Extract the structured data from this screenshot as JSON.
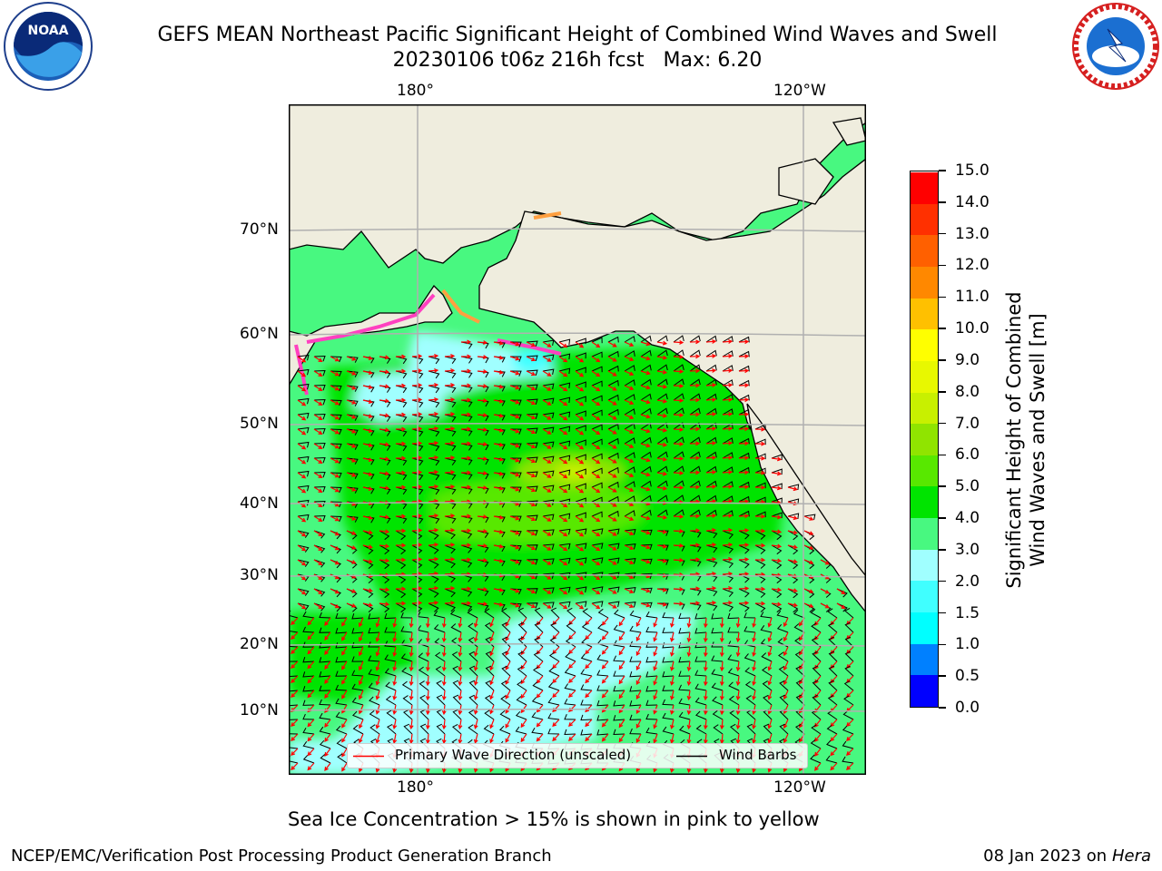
{
  "header": {
    "title_line1": "GEFS MEAN Northeast Pacific Significant Height of Combined Wind Waves and Swell",
    "title_line2": "20230106 t06z 216h fcst   Max: 6.20"
  },
  "logos": {
    "left": {
      "name": "noaa-logo",
      "text": "NOAA"
    },
    "right": {
      "name": "nws-logo",
      "text": "NATIONAL WEATHER SERVICE"
    }
  },
  "map": {
    "top_lon_labels": [
      "180°",
      "120°W"
    ],
    "bottom_lon_labels": [
      "180°",
      "120°W"
    ],
    "lat_labels": [
      "70°N",
      "60°N",
      "50°N",
      "40°N",
      "30°N",
      "20°N",
      "10°N"
    ],
    "legend": {
      "wave_label": "Primary Wave Direction (unscaled)",
      "wind_label": "Wind Barbs",
      "wave_color": "#ff0000",
      "wind_color": "#000000"
    },
    "land_color": "#efedde"
  },
  "colorbar": {
    "title_line1": "Significant Height of Combined",
    "title_line2": "Wind Waves and Swell [m]",
    "ticks": [
      "0.0",
      "0.5",
      "1.0",
      "1.5",
      "2.0",
      "3.0",
      "4.0",
      "5.0",
      "6.0",
      "7.0",
      "8.0",
      "9.0",
      "10.0",
      "11.0",
      "12.0",
      "13.0",
      "14.0",
      "15.0"
    ],
    "colors": [
      "#0000ff",
      "#0080ff",
      "#00ffff",
      "#40ffff",
      "#a0ffff",
      "#48f880",
      "#00e400",
      "#58e800",
      "#90e400",
      "#c8f000",
      "#e8f800",
      "#ffff00",
      "#ffc000",
      "#ff8800",
      "#ff6000",
      "#ff3000",
      "#ff0000"
    ]
  },
  "footer": {
    "sea_ice_note": "Sea Ice Concentration > 15% is shown in pink to yellow",
    "credit": "NCEP/EMC/Verification Post Processing Product Generation Branch",
    "date_text": "08 Jan 2023 on ",
    "date_machine": "Hera"
  }
}
